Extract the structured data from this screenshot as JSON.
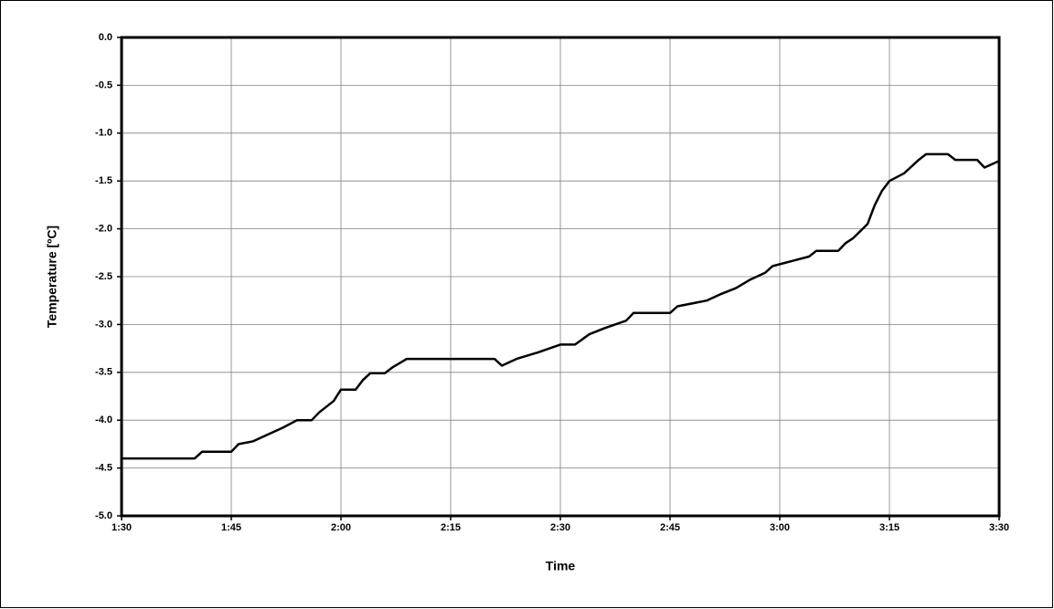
{
  "chart_data": {
    "type": "line",
    "x_label": "Time",
    "y_label": "Temperature [ºC]",
    "x": [
      "1:30",
      "1:40",
      "1:41",
      "1:45",
      "1:46",
      "1:48",
      "1:50",
      "1:52",
      "1:54",
      "1:56",
      "1:57",
      "1:59",
      "2:00",
      "2:02",
      "2:03",
      "2:04",
      "2:06",
      "2:07",
      "2:09",
      "2:21",
      "2:22",
      "2:24",
      "2:27",
      "2:30",
      "2:32",
      "2:34",
      "2:36",
      "2:39",
      "2:40",
      "2:45",
      "2:46",
      "2:50",
      "2:52",
      "2:54",
      "2:56",
      "2:58",
      "2:59",
      "3:02",
      "3:04",
      "3:05",
      "3:08",
      "3:09",
      "3:10",
      "3:12",
      "3:13",
      "3:14",
      "3:15",
      "3:17",
      "3:18",
      "3:19",
      "3:20",
      "3:23",
      "3:24",
      "3:27",
      "3:28",
      "3:30"
    ],
    "series": [
      {
        "color": "#000000",
        "values": [
          -4.4,
          -4.4,
          -4.33,
          -4.33,
          -4.25,
          -4.22,
          -4.15,
          -4.08,
          -4.0,
          -4.0,
          -3.92,
          -3.8,
          -3.68,
          -3.68,
          -3.58,
          -3.51,
          -3.51,
          -3.45,
          -3.36,
          -3.36,
          -3.43,
          -3.36,
          -3.29,
          -3.21,
          -3.21,
          -3.1,
          -3.04,
          -2.96,
          -2.88,
          -2.88,
          -2.81,
          -2.75,
          -2.68,
          -2.62,
          -2.53,
          -2.46,
          -2.39,
          -2.33,
          -2.29,
          -2.23,
          -2.23,
          -2.15,
          -2.1,
          -1.95,
          -1.75,
          -1.6,
          -1.5,
          -1.42,
          -1.35,
          -1.28,
          -1.22,
          -1.22,
          -1.28,
          -1.28,
          -1.36,
          -1.29
        ]
      }
    ],
    "xlim": [
      "1:30",
      "3:30"
    ],
    "xticks": [
      "1:30",
      "1:45",
      "2:00",
      "2:15",
      "2:30",
      "2:45",
      "3:00",
      "3:15",
      "3:30"
    ],
    "ylim": [
      -5,
      0
    ],
    "yticks": [
      {
        "value": 0,
        "label": "0.0"
      },
      -0.5,
      {
        "value": -1,
        "label": "-1.0"
      },
      -1.5,
      {
        "value": -2,
        "label": "-2.0"
      },
      -2.5,
      {
        "value": -3,
        "label": "-3.0"
      },
      -3.5,
      {
        "value": -4,
        "label": "-4.0"
      },
      -4.5,
      {
        "value": -5,
        "label": "-5.0"
      }
    ],
    "grid": true
  }
}
